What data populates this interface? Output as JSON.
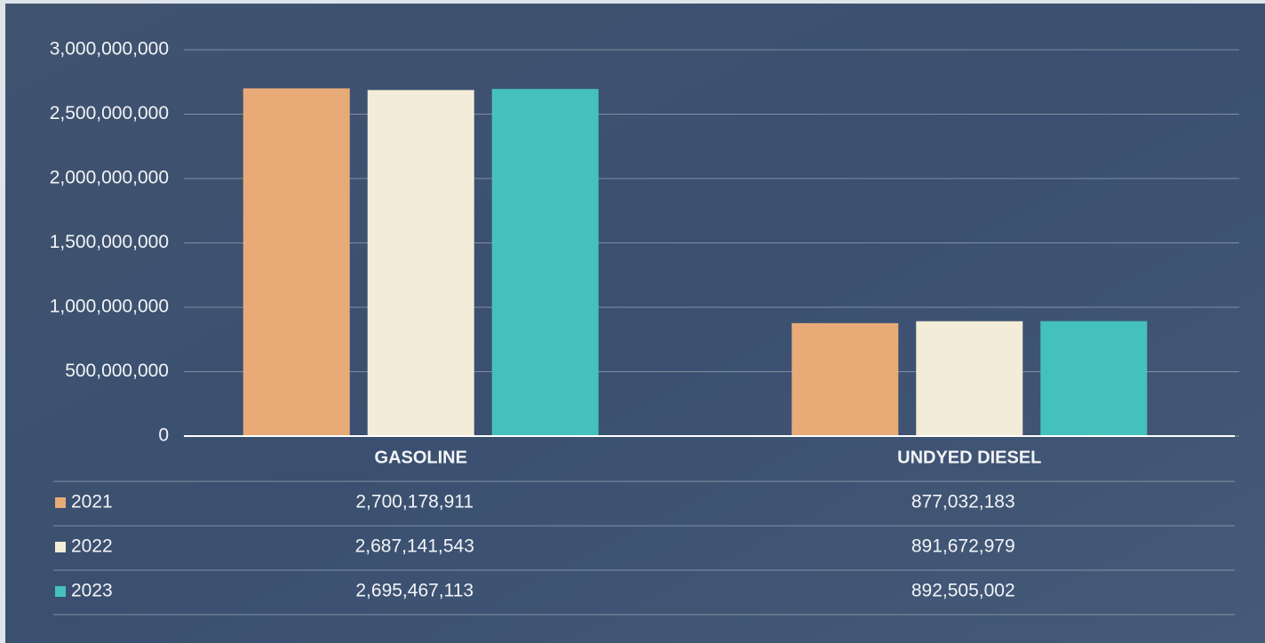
{
  "chart_data": {
    "type": "bar",
    "categories": [
      "GASOLINE",
      "UNDYED DIESEL"
    ],
    "series": [
      {
        "name": "2021",
        "color": "#e8ab78",
        "values": [
          2700178911,
          877032183
        ],
        "value_labels": [
          "2,700,178,911",
          "877,032,183"
        ]
      },
      {
        "name": "2022",
        "color": "#f3ecd8",
        "values": [
          2687141543,
          891672979
        ],
        "value_labels": [
          "2,687,141,543",
          "891,672,979"
        ]
      },
      {
        "name": "2023",
        "color": "#45c1bd",
        "values": [
          2695467113,
          892505002
        ],
        "value_labels": [
          "2,695,467,113",
          "892,505,002"
        ]
      }
    ],
    "ylim": [
      0,
      3000000000
    ],
    "yticks": [
      0,
      {
        "value": 500000000,
        "label": "500,000,000"
      },
      {
        "value": 1000000000,
        "label": "1,000,000,000"
      },
      {
        "value": 1500000000,
        "label": "1,500,000,000"
      },
      {
        "value": 2000000000,
        "label": "2,000,000,000"
      },
      {
        "value": 2500000000,
        "label": "2,500,000,000"
      },
      {
        "value": 3000000000,
        "label": "3,000,000,000"
      }
    ],
    "grid": true
  }
}
